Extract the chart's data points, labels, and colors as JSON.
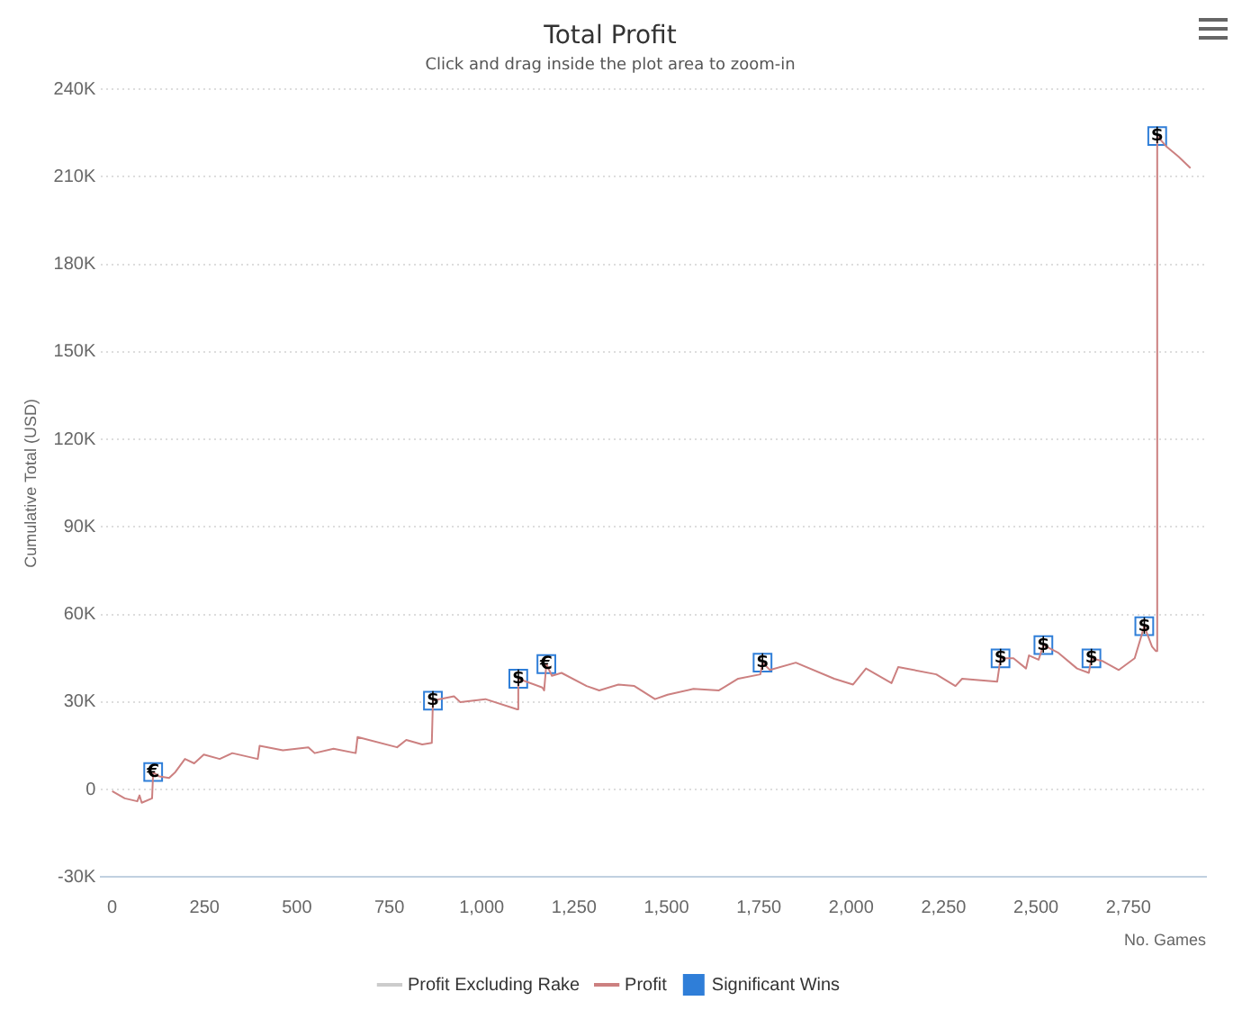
{
  "chart_data": {
    "type": "line",
    "title": "Total Profit",
    "subtitle": "Click and drag inside the plot area to zoom-in",
    "xlabel": "No. Games",
    "ylabel": "Cumulative Total (USD)",
    "xlim": [
      -30,
      2960
    ],
    "ylim": [
      -30000,
      240000
    ],
    "xticks": [
      0,
      250,
      500,
      750,
      {
        "value": 1000,
        "label": "1,000"
      },
      {
        "value": 1250,
        "label": "1,250"
      },
      {
        "value": 1500,
        "label": "1,500"
      },
      {
        "value": 1750,
        "label": "1,750"
      },
      {
        "value": 2000,
        "label": "2,000"
      },
      {
        "value": 2250,
        "label": "2,250"
      },
      {
        "value": 2500,
        "label": "2,500"
      },
      {
        "value": 2750,
        "label": "2,750"
      }
    ],
    "yticks": [
      {
        "value": -30000,
        "label": "-30K"
      },
      0,
      {
        "value": 30000,
        "label": "30K"
      },
      {
        "value": 60000,
        "label": "60K"
      },
      {
        "value": 90000,
        "label": "90K"
      },
      {
        "value": 120000,
        "label": "120K"
      },
      {
        "value": 150000,
        "label": "150K"
      },
      {
        "value": 180000,
        "label": "180K"
      },
      {
        "value": 210000,
        "label": "210K"
      },
      {
        "value": 240000,
        "label": "240K"
      }
    ],
    "grid": "y",
    "legend": "bottom",
    "marker": "none",
    "line_style": "solid",
    "series": [
      {
        "name": "Profit Excluding Rake",
        "color": "#cccccc"
      },
      {
        "name": "Profit",
        "color": "#cc8080",
        "x": [
          0,
          34,
          68,
          74,
          80,
          108,
          111,
          128,
          154,
          171,
          197,
          222,
          248,
          291,
          325,
          394,
          399,
          462,
          531,
          548,
          599,
          659,
          664,
          771,
          796,
          839,
          865,
          868,
          925,
          942,
          1010,
          1096,
          1099,
          1164,
          1169,
          1175,
          1190,
          1216,
          1284,
          1318,
          1370,
          1413,
          1469,
          1503,
          1573,
          1642,
          1694,
          1754,
          1760,
          1780,
          1850,
          1954,
          2005,
          2040,
          2109,
          2127,
          2230,
          2282,
          2300,
          2395,
          2404,
          2439,
          2473,
          2481,
          2507,
          2520,
          2559,
          2611,
          2643,
          2650,
          2681,
          2724,
          2767,
          2793,
          2814,
          2824,
          2828,
          2852,
          2885,
          2918
        ],
        "values": [
          -500,
          -3000,
          -4000,
          -2000,
          -4500,
          -3000,
          6000,
          4500,
          4000,
          6000,
          10500,
          9000,
          12000,
          10500,
          12500,
          10500,
          15000,
          13500,
          14500,
          12500,
          14000,
          12500,
          18000,
          14500,
          17000,
          15500,
          16000,
          30500,
          32000,
          30000,
          31000,
          27500,
          38000,
          35000,
          34000,
          43000,
          39000,
          40000,
          35500,
          34000,
          36000,
          35500,
          31000,
          32500,
          34500,
          34000,
          38000,
          39500,
          43500,
          41000,
          43500,
          38000,
          36000,
          41500,
          36500,
          42000,
          39500,
          35500,
          38000,
          37000,
          45000,
          45000,
          41500,
          46000,
          44500,
          49500,
          47000,
          41500,
          40000,
          45000,
          44000,
          41000,
          45000,
          56000,
          49000,
          47500,
          224000,
          220500,
          217000,
          213000
        ]
      },
      {
        "name": "Significant Wins",
        "type": "scatter",
        "marker": "square",
        "color": "#2f7ed8",
        "x": [
          111,
          868,
          1099,
          1175,
          1760,
          2404,
          2520,
          2650,
          2793,
          2828
        ],
        "values": [
          6000,
          30500,
          38000,
          43000,
          43500,
          45000,
          49500,
          45000,
          56000,
          224000
        ],
        "value_labels": [
          "€",
          "$",
          "$",
          "€",
          "$",
          "$",
          "$",
          "$",
          "$",
          "$"
        ]
      }
    ]
  }
}
